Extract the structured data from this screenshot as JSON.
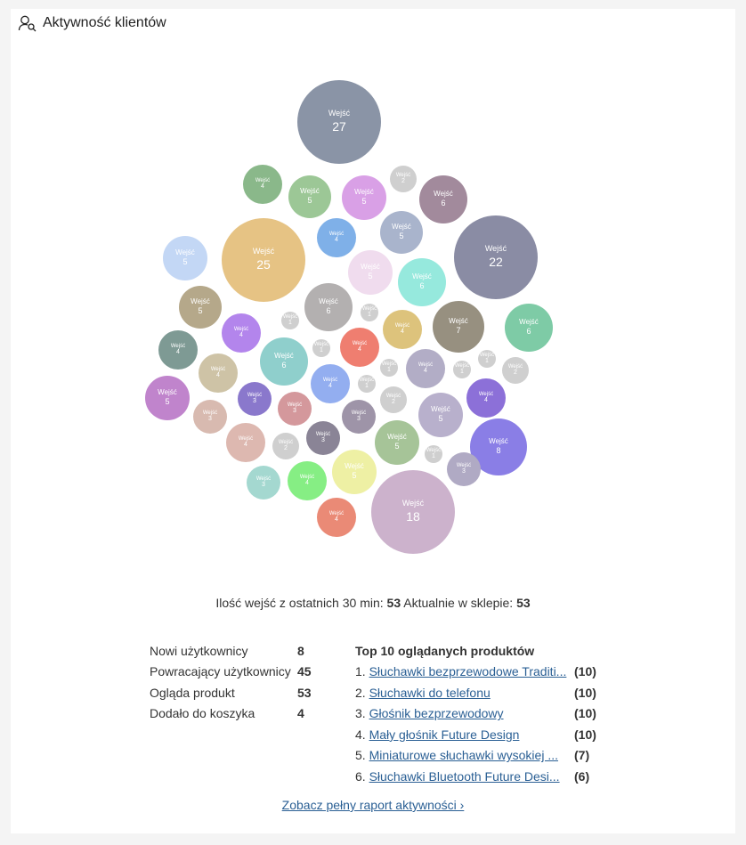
{
  "header": {
    "title": "Aktywność klientów",
    "icon": "user-search-icon"
  },
  "bubble_label": "Wejść",
  "bubbles": [
    {
      "value": 27,
      "color": "#8a94a6"
    },
    {
      "value": 4,
      "color": "#8ab88a"
    },
    {
      "value": 5,
      "color": "#9cc796"
    },
    {
      "value": 5,
      "color": "#d9a0e6"
    },
    {
      "value": 2,
      "color": "#cfcfcf"
    },
    {
      "value": 6,
      "color": "#a28a9c"
    },
    {
      "value": 5,
      "color": "#a9b4cc"
    },
    {
      "value": 4,
      "color": "#7fb0e8"
    },
    {
      "value": 22,
      "color": "#8a8ca4"
    },
    {
      "value": 5,
      "color": "#c3d7f5"
    },
    {
      "value": 25,
      "color": "#e6c384"
    },
    {
      "value": 5,
      "color": "#f0dcee"
    },
    {
      "value": 6,
      "color": "#96e9dd"
    },
    {
      "value": 5,
      "color": "#b5a88a"
    },
    {
      "value": 6,
      "color": "#b3b0b0"
    },
    {
      "value": 1,
      "color": "#cfcfcf"
    },
    {
      "value": 1,
      "color": "#cfcfcf"
    },
    {
      "value": 4,
      "color": "#ddc37c"
    },
    {
      "value": 7,
      "color": "#979080"
    },
    {
      "value": 6,
      "color": "#7ecba6"
    },
    {
      "value": 4,
      "color": "#b385ec"
    },
    {
      "value": 4,
      "color": "#7e9a94"
    },
    {
      "value": 1,
      "color": "#cfcfcf"
    },
    {
      "value": 4,
      "color": "#ef7e70"
    },
    {
      "value": 6,
      "color": "#8fcfcc"
    },
    {
      "value": 4,
      "color": "#cec3a6"
    },
    {
      "value": 1,
      "color": "#cfcfcf"
    },
    {
      "value": 4,
      "color": "#b2adc6"
    },
    {
      "value": 1,
      "color": "#cfcfcf"
    },
    {
      "value": 1,
      "color": "#cfcfcf"
    },
    {
      "value": 2,
      "color": "#cfcfcf"
    },
    {
      "value": 1,
      "color": "#cfcfcf"
    },
    {
      "value": 4,
      "color": "#93aef0"
    },
    {
      "value": 3,
      "color": "#8a78cc"
    },
    {
      "value": 5,
      "color": "#c084cc"
    },
    {
      "value": 4,
      "color": "#8c70d8"
    },
    {
      "value": 2,
      "color": "#cfcfcf"
    },
    {
      "value": 3,
      "color": "#d8bab0"
    },
    {
      "value": 3,
      "color": "#d4989c"
    },
    {
      "value": 3,
      "color": "#9e94a8"
    },
    {
      "value": 5,
      "color": "#b8b0cc"
    },
    {
      "value": 4,
      "color": "#ddb8b0"
    },
    {
      "value": 2,
      "color": "#cfcfcf"
    },
    {
      "value": 3,
      "color": "#8a8496"
    },
    {
      "value": 5,
      "color": "#a6c498"
    },
    {
      "value": 8,
      "color": "#8a7ee6"
    },
    {
      "value": 1,
      "color": "#cfcfcf"
    },
    {
      "value": 3,
      "color": "#b0aac4"
    },
    {
      "value": 3,
      "color": "#a4d8d0"
    },
    {
      "value": 4,
      "color": "#86ee84"
    },
    {
      "value": 5,
      "color": "#eef0a4"
    },
    {
      "value": 18,
      "color": "#ccb2cc"
    },
    {
      "value": 4,
      "color": "#ea8a76"
    }
  ],
  "summary": {
    "entries_label": "Ilość wejść z ostatnich 30 min:",
    "entries_value": "53",
    "now_label": "Aktualnie w sklepie:",
    "now_value": "53"
  },
  "stats": [
    {
      "label": "Nowi użytkownicy",
      "value": "8"
    },
    {
      "label": "Powracający użytkownicy",
      "value": "45"
    },
    {
      "label": "Ogląda produkt",
      "value": "53"
    },
    {
      "label": "Dodało do koszyka",
      "value": "4"
    }
  ],
  "top_products": {
    "title": "Top 10 oglądanych produktów",
    "items": [
      {
        "rank": "1.",
        "name": "Słuchawki bezprzewodowe Traditi...",
        "count": "(10)"
      },
      {
        "rank": "2.",
        "name": "Słuchawki do telefonu",
        "count": "(10)"
      },
      {
        "rank": "3.",
        "name": "Głośnik bezprzewodowy",
        "count": "(10)"
      },
      {
        "rank": "4.",
        "name": "Mały głośnik Future Design",
        "count": "(10)"
      },
      {
        "rank": "5.",
        "name": "Miniaturowe słuchawki wysokiej ...",
        "count": "(7)"
      },
      {
        "rank": "6.",
        "name": "Słuchawki Bluetooth Future Desi...",
        "count": "(6)"
      }
    ]
  },
  "report_link": "Zobacz pełny raport aktywności ›"
}
